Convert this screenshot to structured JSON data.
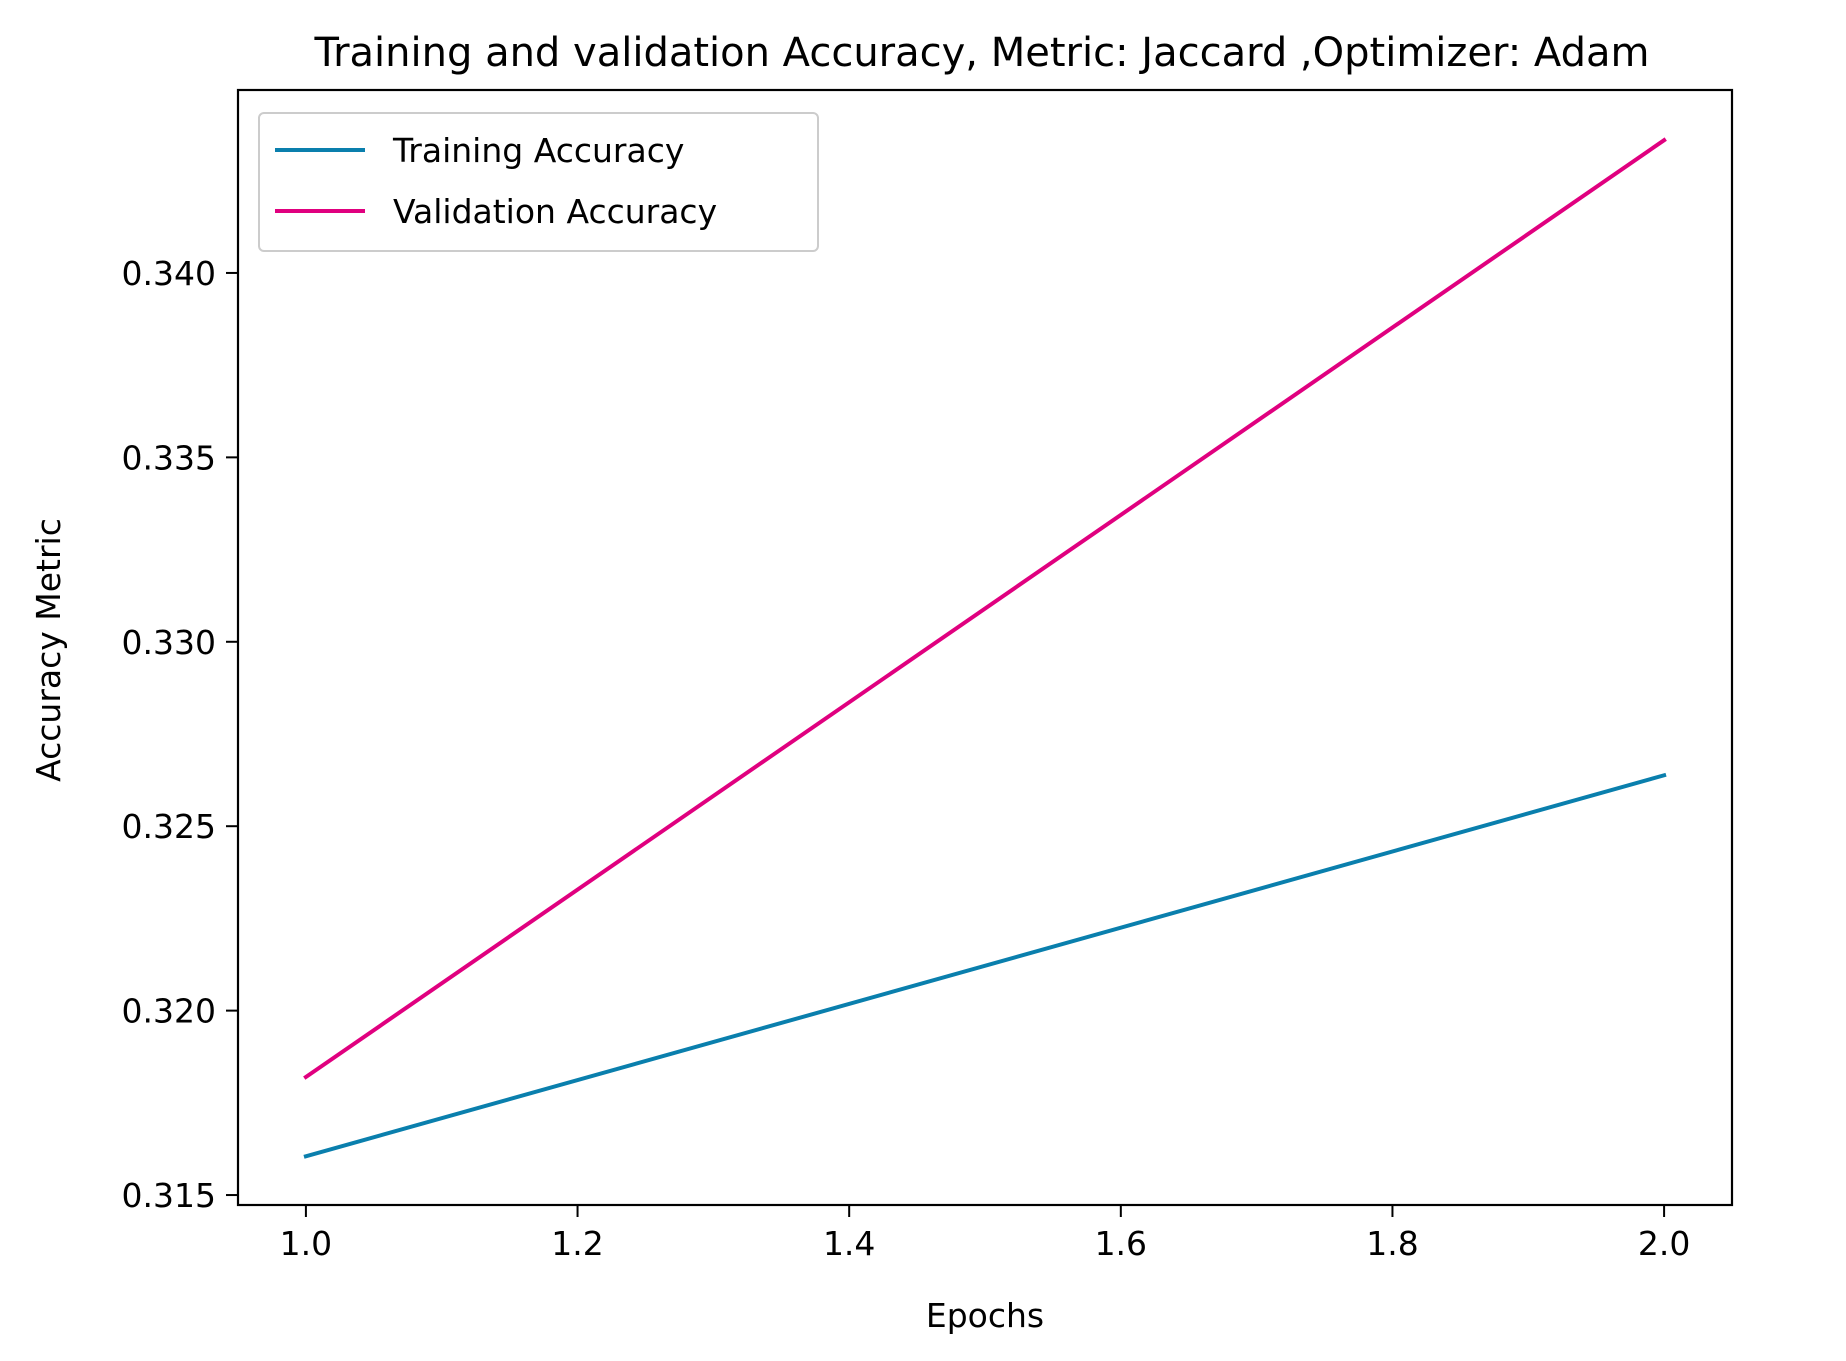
{
  "chart_data": {
    "type": "line",
    "title": "Training and validation Accuracy, Metric: Jaccard ,Optimizer: Adam",
    "xlabel": "Epochs",
    "ylabel": "Accuracy Metric",
    "x": [
      1.0,
      2.0
    ],
    "series": [
      {
        "name": "Training Accuracy",
        "values": [
          0.31605,
          0.32638
        ],
        "color": "#0a7fad"
      },
      {
        "name": "Validation Accuracy",
        "values": [
          0.3182,
          0.3436
        ],
        "color": "#e0007f"
      }
    ],
    "xlim": [
      0.95,
      2.05
    ],
    "ylim": [
      0.31473,
      0.34496
    ],
    "xticks": [
      1.0,
      1.2,
      1.4,
      1.6,
      1.8,
      2.0
    ],
    "xtick_labels": [
      "1.0",
      "1.2",
      "1.4",
      "1.6",
      "1.8",
      "2.0"
    ],
    "yticks": [
      0.315,
      0.32,
      0.325,
      0.33,
      0.335,
      0.34
    ],
    "ytick_labels": [
      "0.315",
      "0.320",
      "0.325",
      "0.330",
      "0.335",
      "0.340"
    ],
    "grid": false,
    "legend_position": "upper-left"
  }
}
